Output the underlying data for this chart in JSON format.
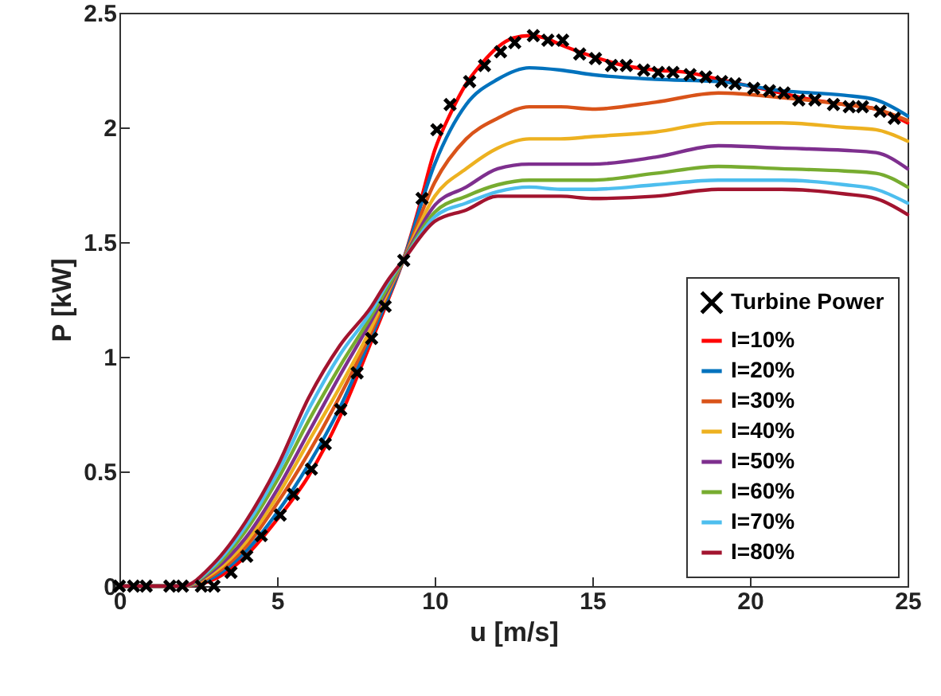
{
  "chart_data": {
    "type": "line",
    "xlabel": "u [m/s]",
    "ylabel": "P [kW]",
    "xlim": [
      0,
      25
    ],
    "xticks": [
      0,
      5,
      10,
      15,
      20,
      25
    ],
    "ylim": [
      0,
      2.5
    ],
    "yticks": [
      0,
      0.5,
      1,
      1.5,
      2,
      2.5
    ],
    "grid": false,
    "legend": "bottom right",
    "line_style": "solid",
    "x": [
      0,
      2,
      3,
      4,
      5,
      6,
      7,
      8,
      8.5,
      9,
      10,
      11,
      12,
      13,
      14,
      15,
      17,
      19,
      21,
      23,
      24,
      25
    ],
    "series": [
      {
        "name": "Turbine Power",
        "type": "scatter",
        "marker": "cross",
        "color": "#000000",
        "x": [
          0,
          0.45,
          0.85,
          1.6,
          2.0,
          2.6,
          3.0,
          3.54,
          4.04,
          4.5,
          5.1,
          5.52,
          6.09,
          6.53,
          7.02,
          7.54,
          8.0,
          8.43,
          9.02,
          9.6,
          10.07,
          10.49,
          11.11,
          11.58,
          12.09,
          12.54,
          13.13,
          13.59,
          14.06,
          14.6,
          15.1,
          15.61,
          16.08,
          16.63,
          17.09,
          17.56,
          18.1,
          18.6,
          19.1,
          19.53,
          20.12,
          20.62,
          21.08,
          21.55,
          22.06,
          22.65,
          23.15,
          23.57,
          24.13,
          24.58
        ],
        "values": [
          0,
          0,
          0,
          0,
          0,
          0,
          0,
          0.06,
          0.13,
          0.22,
          0.31,
          0.4,
          0.51,
          0.62,
          0.77,
          0.93,
          1.08,
          1.22,
          1.42,
          1.69,
          1.99,
          2.1,
          2.2,
          2.27,
          2.33,
          2.37,
          2.4,
          2.38,
          2.38,
          2.32,
          2.3,
          2.27,
          2.27,
          2.25,
          2.24,
          2.24,
          2.23,
          2.22,
          2.2,
          2.19,
          2.17,
          2.16,
          2.15,
          2.12,
          2.12,
          2.1,
          2.09,
          2.09,
          2.07,
          2.04
        ]
      },
      {
        "name": "I=10%",
        "color": "#ff0000",
        "x": [
          0,
          2,
          3,
          4,
          5,
          6,
          7,
          8,
          8.5,
          9,
          9.5,
          10,
          10.5,
          11,
          11.5,
          12,
          12.5,
          13,
          13.5,
          14,
          15,
          16,
          17,
          18,
          19,
          20,
          21,
          22,
          23,
          24,
          25
        ],
        "values": [
          0,
          0,
          0.03,
          0.13,
          0.29,
          0.48,
          0.74,
          1.07,
          1.24,
          1.42,
          1.65,
          1.9,
          2.06,
          2.19,
          2.28,
          2.35,
          2.39,
          2.4,
          2.39,
          2.36,
          2.31,
          2.27,
          2.25,
          2.24,
          2.21,
          2.18,
          2.15,
          2.12,
          2.1,
          2.08,
          2.02
        ]
      },
      {
        "name": "I=20%",
        "color": "#0072bd",
        "values": [
          0,
          0,
          0.04,
          0.15,
          0.32,
          0.53,
          0.78,
          1.09,
          1.25,
          1.42,
          1.84,
          2.1,
          2.21,
          2.26,
          2.25,
          2.23,
          2.21,
          2.2,
          2.16,
          2.14,
          2.12,
          2.05
        ]
      },
      {
        "name": "I=30%",
        "color": "#d95319",
        "values": [
          0,
          0,
          0.05,
          0.17,
          0.36,
          0.58,
          0.83,
          1.11,
          1.27,
          1.42,
          1.76,
          1.95,
          2.04,
          2.09,
          2.09,
          2.08,
          2.11,
          2.15,
          2.13,
          2.1,
          2.08,
          2.03
        ]
      },
      {
        "name": "I=40%",
        "color": "#edb120",
        "values": [
          0,
          0,
          0.06,
          0.19,
          0.39,
          0.63,
          0.87,
          1.13,
          1.28,
          1.42,
          1.7,
          1.82,
          1.91,
          1.95,
          1.95,
          1.96,
          1.98,
          2.02,
          2.02,
          2.0,
          1.99,
          1.94
        ]
      },
      {
        "name": "I=50%",
        "color": "#7e2f8e",
        "values": [
          0,
          0,
          0.07,
          0.21,
          0.42,
          0.67,
          0.92,
          1.16,
          1.29,
          1.42,
          1.66,
          1.74,
          1.82,
          1.84,
          1.84,
          1.84,
          1.87,
          1.92,
          1.91,
          1.9,
          1.89,
          1.82
        ]
      },
      {
        "name": "I=60%",
        "color": "#77ac30",
        "values": [
          0,
          0,
          0.08,
          0.24,
          0.46,
          0.72,
          0.96,
          1.18,
          1.3,
          1.42,
          1.63,
          1.7,
          1.75,
          1.77,
          1.77,
          1.77,
          1.8,
          1.83,
          1.82,
          1.81,
          1.8,
          1.74
        ]
      },
      {
        "name": "I=70%",
        "color": "#4dbeee",
        "values": [
          0,
          0,
          0.09,
          0.26,
          0.49,
          0.77,
          1.01,
          1.2,
          1.32,
          1.42,
          1.61,
          1.67,
          1.72,
          1.74,
          1.73,
          1.73,
          1.75,
          1.77,
          1.77,
          1.75,
          1.73,
          1.67
        ]
      },
      {
        "name": "I=80%",
        "color": "#a2142f",
        "values": [
          0,
          0,
          0.1,
          0.28,
          0.52,
          0.82,
          1.05,
          1.22,
          1.33,
          1.42,
          1.59,
          1.64,
          1.7,
          1.7,
          1.7,
          1.69,
          1.7,
          1.73,
          1.73,
          1.71,
          1.69,
          1.62
        ]
      }
    ]
  }
}
